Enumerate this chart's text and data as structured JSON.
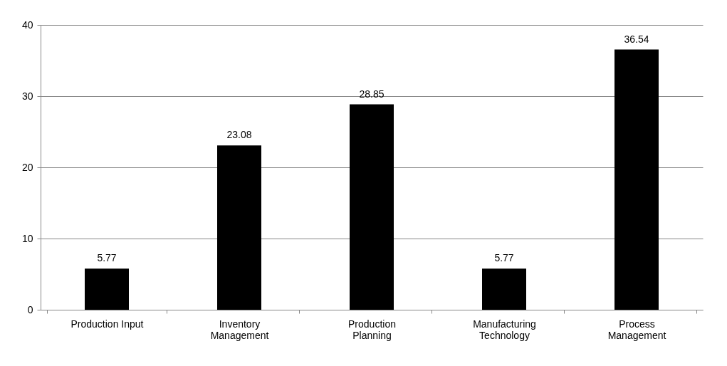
{
  "chart_data": {
    "type": "bar",
    "categories": [
      "Production Input",
      "Inventory Management",
      "Production Planning",
      "Manufacturing Technology",
      "Process Management"
    ],
    "values": [
      5.77,
      23.08,
      28.85,
      5.77,
      36.54
    ],
    "color": "#000000",
    "ylim": [
      0,
      40
    ],
    "yticks": [
      0,
      10,
      20,
      30,
      40
    ],
    "grid": "y",
    "data_labels": true
  }
}
